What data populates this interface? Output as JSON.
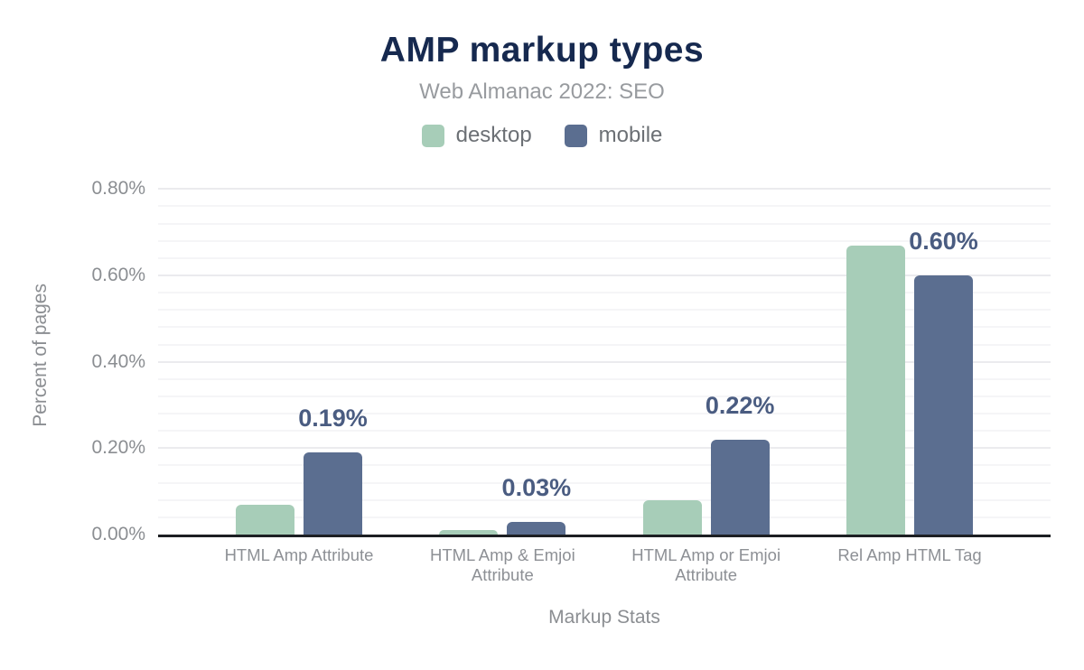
{
  "title": "AMP markup types",
  "subtitle": "Web Almanac 2022: SEO",
  "legend": [
    {
      "label": "desktop",
      "color": "#a7cdb8"
    },
    {
      "label": "mobile",
      "color": "#5b6e90"
    }
  ],
  "colors": {
    "title": "#16294f",
    "desktop_bar": "#a7cdb8",
    "mobile_bar": "#5b6e90",
    "value_label": "#4a5c81",
    "axis_line": "#1d1f23",
    "tick_text": "#8b8e92"
  },
  "chart_data": {
    "type": "bar",
    "title": "AMP markup types",
    "subtitle": "Web Almanac 2022: SEO",
    "categories": [
      "HTML Amp Attribute",
      "HTML Amp & Emjoi Attribute",
      "HTML Amp or Emjoi Attribute",
      "Rel Amp HTML Tag"
    ],
    "series": [
      {
        "name": "desktop",
        "color": "#a7cdb8",
        "values": [
          0.07,
          0.01,
          0.08,
          0.67
        ]
      },
      {
        "name": "mobile",
        "color": "#5b6e90",
        "values": [
          0.19,
          0.03,
          0.22,
          0.6
        ]
      }
    ],
    "bar_labels": {
      "series": "mobile",
      "values": [
        "0.19%",
        "0.03%",
        "0.22%",
        "0.60%"
      ]
    },
    "xlabel": "Markup Stats",
    "ylabel": "Percent of pages",
    "y_ticks": [
      {
        "value": 0.0,
        "label": "0.00%"
      },
      {
        "value": 0.2,
        "label": "0.20%"
      },
      {
        "value": 0.4,
        "label": "0.40%"
      },
      {
        "value": 0.6,
        "label": "0.60%"
      },
      {
        "value": 0.8,
        "label": "0.80%"
      }
    ],
    "ylim": [
      0,
      0.83
    ],
    "minor_grid_step": 0.04,
    "major_grid_step": 0.2,
    "grid": true,
    "legend_position": "top"
  }
}
